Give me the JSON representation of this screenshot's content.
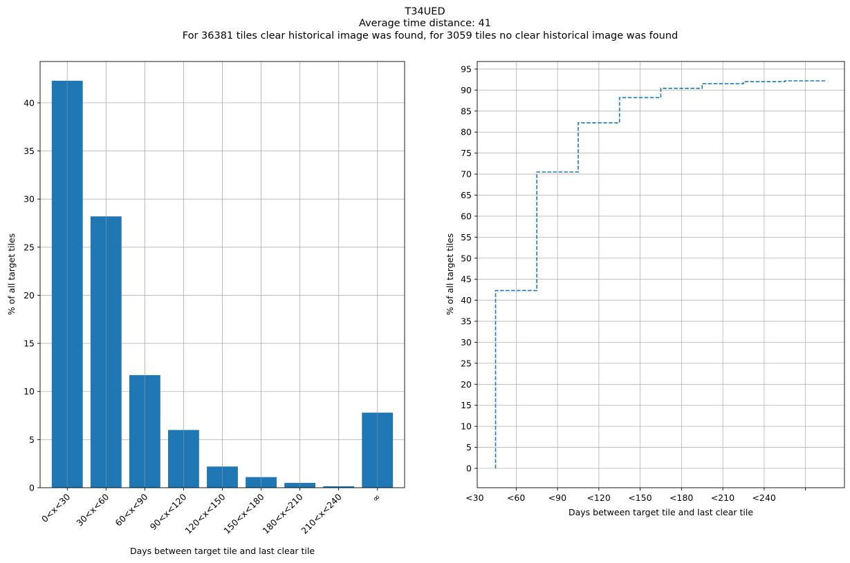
{
  "figure": {
    "title_lines": [
      "T34UED",
      "Average time distance: 41",
      "For 36381 tiles clear historical image was found, for 3059 tiles no clear historical image was found"
    ]
  },
  "colors": {
    "series": "#1f77b4",
    "grid": "#b0b0b0",
    "axis": "#000000"
  },
  "chart_data": [
    {
      "type": "bar",
      "title": "",
      "xlabel": "Days between target tile and last clear tile",
      "ylabel": "% of all target tiles",
      "categories": [
        "0<x<30",
        "30<x<60",
        "60<x<90",
        "90<x<120",
        "120<x<150",
        "150<x<180",
        "180<x<210",
        "210<x<240",
        "∞"
      ],
      "values": [
        42.3,
        28.2,
        11.7,
        6.0,
        2.2,
        1.1,
        0.5,
        0.15,
        7.8
      ],
      "ylim": [
        0,
        44.3
      ],
      "yticks": [
        0,
        5,
        10,
        15,
        20,
        25,
        30,
        35,
        40
      ],
      "xtick_rotation": -45,
      "grid": true,
      "legend": "none"
    },
    {
      "type": "line",
      "style": "dashed-step",
      "title": "",
      "xlabel": "Days between target tile and last clear tile",
      "ylabel": "% of all target tiles",
      "x": [
        15,
        15,
        45,
        45,
        75,
        75,
        105,
        105,
        135,
        135,
        165,
        165,
        195,
        195,
        225,
        225,
        255
      ],
      "y": [
        0,
        42.3,
        42.3,
        70.5,
        70.5,
        82.2,
        82.2,
        88.2,
        88.2,
        90.4,
        90.4,
        91.5,
        91.5,
        92.0,
        92.0,
        92.2,
        92.2
      ],
      "xticks": [
        30,
        60,
        90,
        120,
        150,
        180,
        210,
        240
      ],
      "xtick_labels": [
        "<30",
        "<60",
        "<90",
        "<120",
        "<150",
        "<180",
        "<210",
        "<240"
      ],
      "xlim": [
        1.7,
        268.3
      ],
      "ylim": [
        -4.6,
        96.8
      ],
      "yticks": [
        0,
        5,
        10,
        15,
        20,
        25,
        30,
        35,
        40,
        45,
        50,
        55,
        60,
        65,
        70,
        75,
        80,
        85,
        90,
        95
      ],
      "grid": true,
      "legend": "none"
    }
  ]
}
